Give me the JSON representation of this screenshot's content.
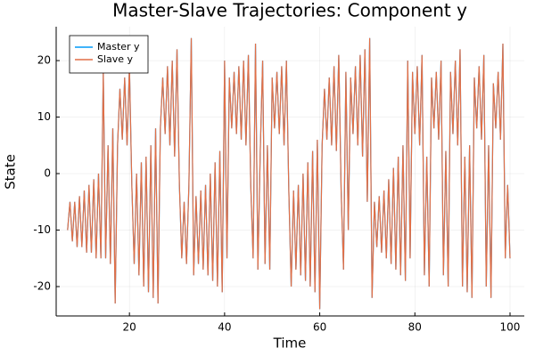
{
  "chart_data": {
    "type": "line",
    "title": "Master-Slave Trajectories: Component y",
    "xlabel": "Time",
    "ylabel": "State",
    "x": [
      7,
      7.5,
      8,
      8.5,
      9,
      9.5,
      10,
      10.5,
      11,
      11.5,
      12,
      12.5,
      13,
      13.5,
      14,
      14.5,
      15,
      15.5,
      16,
      16.5,
      17,
      17.5,
      18,
      18.5,
      19,
      19.5,
      20,
      20.5,
      21,
      21.5,
      22,
      22.5,
      23,
      23.5,
      24,
      24.5,
      25,
      25.5,
      26,
      26.5,
      27,
      27.5,
      28,
      28.5,
      29,
      29.5,
      30,
      30.5,
      31,
      31.5,
      32,
      32.5,
      33,
      33.5,
      34,
      34.5,
      35,
      35.5,
      36,
      36.5,
      37,
      37.5,
      38,
      38.5,
      39,
      39.5,
      40,
      40.5,
      41,
      41.5,
      42,
      42.5,
      43,
      43.5,
      44,
      44.5,
      45,
      45.5,
      46,
      46.5,
      47,
      47.5,
      48,
      48.5,
      49,
      49.5,
      50,
      50.5,
      51,
      51.5,
      52,
      52.5,
      53,
      53.5,
      54,
      54.5,
      55,
      55.5,
      56,
      56.5,
      57,
      57.5,
      58,
      58.5,
      59,
      59.5,
      60,
      60.5,
      61,
      61.5,
      62,
      62.5,
      63,
      63.5,
      64,
      64.5,
      65,
      65.5,
      66,
      66.5,
      67,
      67.5,
      68,
      68.5,
      69,
      69.5,
      70,
      70.5,
      71,
      71.5,
      72,
      72.5,
      73,
      73.5,
      74,
      74.5,
      75,
      75.5,
      76,
      76.5,
      77,
      77.5,
      78,
      78.5,
      79,
      79.5,
      80,
      80.5,
      81,
      81.5,
      82,
      82.5,
      83,
      83.5,
      84,
      84.5,
      85,
      85.5,
      86,
      86.5,
      87,
      87.5,
      88,
      88.5,
      89,
      89.5,
      90,
      90.5,
      91,
      91.5,
      92,
      92.5,
      93,
      93.5,
      94,
      94.5,
      95,
      95.5,
      96,
      96.5,
      97,
      97.5,
      98,
      98.5,
      99,
      99.5,
      100
    ],
    "series": [
      {
        "name": "Master y",
        "color": "#009af9",
        "values": [
          -10,
          -5,
          -12,
          -5,
          -13,
          -4,
          -13,
          -3,
          -14,
          -2,
          -14,
          -1,
          -15,
          0,
          -15,
          18,
          -15,
          5,
          -16,
          8,
          -23,
          5,
          15,
          6,
          17,
          5,
          19,
          -2,
          -16,
          0,
          -18,
          2,
          -20,
          3,
          -21,
          5,
          -22,
          8,
          -23,
          8,
          17,
          7,
          19,
          5,
          20,
          3,
          22,
          -2,
          -15,
          -5,
          -16,
          -2,
          24,
          -18,
          -4,
          -16,
          -3,
          -17,
          -2,
          -18,
          0,
          -19,
          2,
          -20,
          4,
          -21,
          20,
          -15,
          17,
          8,
          18,
          7,
          19,
          6,
          20,
          5,
          21,
          -2,
          -15,
          23,
          -17,
          4,
          20,
          -16,
          5,
          -17,
          17,
          8,
          18,
          7,
          19,
          5,
          20,
          -3,
          -20,
          -3,
          -17,
          -2,
          -18,
          0,
          -19,
          2,
          -20,
          4,
          -21,
          6,
          -24,
          5,
          15,
          6,
          17,
          5,
          19,
          4,
          21,
          -3,
          -17,
          18,
          -10,
          17,
          7,
          19,
          5,
          21,
          3,
          22,
          -5,
          24,
          -22,
          -5,
          -13,
          -4,
          -14,
          -3,
          -15,
          -1,
          -16,
          1,
          -17,
          3,
          -18,
          5,
          -19,
          20,
          -15,
          18,
          7,
          19,
          5,
          21,
          -18,
          3,
          -20,
          17,
          8,
          18,
          6,
          20,
          -18,
          4,
          -20,
          18,
          7,
          20,
          5,
          22,
          -20,
          3,
          -21,
          5,
          -22,
          17,
          8,
          19,
          6,
          21,
          -20,
          5,
          -22,
          16,
          8,
          18,
          6,
          23,
          -15,
          -2,
          -15
        ]
      },
      {
        "name": "Slave y",
        "color": "#e26f46",
        "values": [
          -10,
          -5,
          -12,
          -5,
          -13,
          -4,
          -13,
          -3,
          -14,
          -2,
          -14,
          -1,
          -15,
          0,
          -15,
          18,
          -15,
          5,
          -16,
          8,
          -23,
          5,
          15,
          6,
          17,
          5,
          19,
          -2,
          -16,
          0,
          -18,
          2,
          -20,
          3,
          -21,
          5,
          -22,
          8,
          -23,
          8,
          17,
          7,
          19,
          5,
          20,
          3,
          22,
          -2,
          -15,
          -5,
          -16,
          -2,
          24,
          -18,
          -4,
          -16,
          -3,
          -17,
          -2,
          -18,
          0,
          -19,
          2,
          -20,
          4,
          -21,
          20,
          -15,
          17,
          8,
          18,
          7,
          19,
          6,
          20,
          5,
          21,
          -2,
          -15,
          23,
          -17,
          4,
          20,
          -16,
          5,
          -17,
          17,
          8,
          18,
          7,
          19,
          5,
          20,
          -3,
          -20,
          -3,
          -17,
          -2,
          -18,
          0,
          -19,
          2,
          -20,
          4,
          -21,
          6,
          -24,
          5,
          15,
          6,
          17,
          5,
          19,
          4,
          21,
          -3,
          -17,
          18,
          -10,
          17,
          7,
          19,
          5,
          21,
          3,
          22,
          -5,
          24,
          -22,
          -5,
          -13,
          -4,
          -14,
          -3,
          -15,
          -1,
          -16,
          1,
          -17,
          3,
          -18,
          5,
          -19,
          20,
          -15,
          18,
          7,
          19,
          5,
          21,
          -18,
          3,
          -20,
          17,
          8,
          18,
          6,
          20,
          -18,
          4,
          -20,
          18,
          7,
          20,
          5,
          22,
          -20,
          3,
          -21,
          5,
          -22,
          17,
          8,
          19,
          6,
          21,
          -20,
          5,
          -22,
          16,
          8,
          18,
          6,
          23,
          -15,
          -2,
          -15
        ]
      }
    ],
    "xlim": [
      4.6,
      103
    ],
    "ylim": [
      -25.2,
      26
    ],
    "xticks": [
      20,
      40,
      60,
      80,
      100
    ],
    "yticks": [
      -20,
      -10,
      0,
      10,
      20
    ],
    "grid": true,
    "legend": "top-left"
  }
}
